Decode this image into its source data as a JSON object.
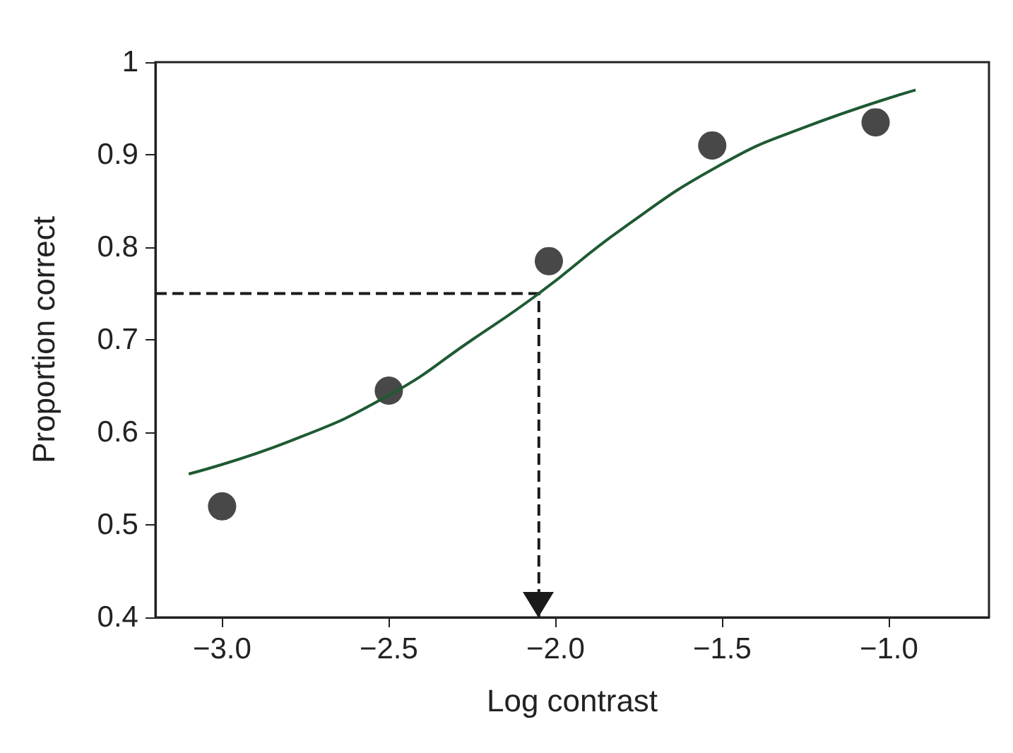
{
  "chart_data": {
    "type": "scatter",
    "xlabel": "Log contrast",
    "ylabel": "Proportion correct",
    "xlim": [
      -3.2,
      -0.7
    ],
    "xticks": [
      {
        "value": -3,
        "label": "−3.0"
      },
      {
        "value": -2.5,
        "label": "−2.5"
      },
      {
        "value": -2,
        "label": "−2.0"
      },
      {
        "value": -1.5,
        "label": "−1.5"
      },
      {
        "value": -1,
        "label": "−1.0"
      }
    ],
    "ylim": [
      0.4,
      1
    ],
    "yticks": [
      0.4,
      0.5,
      0.6,
      0.7,
      0.8,
      0.9,
      1
    ],
    "grid": false,
    "series": [
      {
        "marker": "circle",
        "color": "#1a1a1a",
        "x": [
          -3.0,
          -2.5,
          -2.02,
          -1.53,
          -1.04
        ],
        "values": [
          0.52,
          0.645,
          0.785,
          0.91,
          0.935
        ]
      },
      {
        "type": "line",
        "color": "#1e5a32",
        "x": [
          -3.1,
          -2.8,
          -2.5,
          -2.25,
          -2.05,
          -1.8,
          -1.5,
          -1.25,
          -0.92
        ],
        "values": [
          0.555,
          0.59,
          0.64,
          0.7,
          0.75,
          0.82,
          0.89,
          0.93,
          0.97
        ]
      }
    ],
    "ref_lines": [
      {
        "axis": "y",
        "value": 0.75,
        "color": "#1a1a1a",
        "line_style": "dashed"
      },
      {
        "axis": "x",
        "value": -2.05,
        "color": "#1a1a1a",
        "line_style": "dashed"
      }
    ]
  }
}
